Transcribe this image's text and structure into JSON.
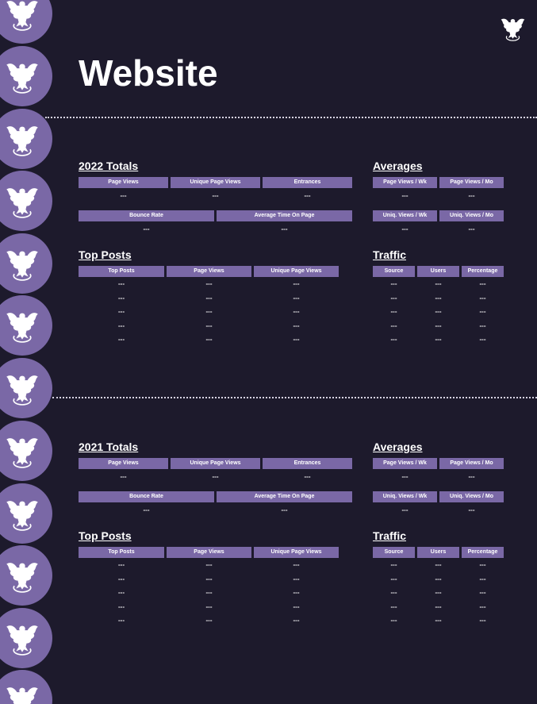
{
  "title": "Website",
  "sections": [
    {
      "totals": {
        "heading": "2022 Totals",
        "row1": {
          "headers": [
            "Page Views",
            "Unique Page Views",
            "Entrances"
          ],
          "values": [
            "---",
            "---",
            "---"
          ]
        },
        "row2": {
          "headers": [
            "Bounce Rate",
            "Average Time On Page"
          ],
          "values": [
            "---",
            "---"
          ]
        }
      },
      "averages": {
        "heading": "Averages",
        "row1": {
          "headers": [
            "Page Views / Wk",
            "Page Views / Mo"
          ],
          "values": [
            "---",
            "---"
          ]
        },
        "row2": {
          "headers": [
            "Uniq. Views / Wk",
            "Uniq. Views / Mo"
          ],
          "values": [
            "---",
            "---"
          ]
        }
      },
      "top_posts": {
        "heading": "Top Posts",
        "headers": [
          "Top Posts",
          "Page Views",
          "Unique Page Views"
        ],
        "rows": [
          [
            "---",
            "---",
            "---"
          ],
          [
            "---",
            "---",
            "---"
          ],
          [
            "---",
            "---",
            "---"
          ],
          [
            "---",
            "---",
            "---"
          ],
          [
            "---",
            "---",
            "---"
          ]
        ]
      },
      "traffic": {
        "heading": "Traffic",
        "headers": [
          "Source",
          "Users",
          "Percentage"
        ],
        "rows": [
          [
            "---",
            "---",
            "---"
          ],
          [
            "---",
            "---",
            "---"
          ],
          [
            "---",
            "---",
            "---"
          ],
          [
            "---",
            "---",
            "---"
          ],
          [
            "---",
            "---",
            "---"
          ]
        ]
      }
    },
    {
      "totals": {
        "heading": "2021 Totals",
        "row1": {
          "headers": [
            "Page Views",
            "Unique Page Views",
            "Entrances"
          ],
          "values": [
            "---",
            "---",
            "---"
          ]
        },
        "row2": {
          "headers": [
            "Bounce Rate",
            "Average Time On Page"
          ],
          "values": [
            "---",
            "---"
          ]
        }
      },
      "averages": {
        "heading": "Averages",
        "row1": {
          "headers": [
            "Page Views / Wk",
            "Page Views / Mo"
          ],
          "values": [
            "---",
            "---"
          ]
        },
        "row2": {
          "headers": [
            "Uniq. Views / Wk",
            "Uniq. Views / Mo"
          ],
          "values": [
            "---",
            "---"
          ]
        }
      },
      "top_posts": {
        "heading": "Top Posts",
        "headers": [
          "Top Posts",
          "Page Views",
          "Unique Page Views"
        ],
        "rows": [
          [
            "---",
            "---",
            "---"
          ],
          [
            "---",
            "---",
            "---"
          ],
          [
            "---",
            "---",
            "---"
          ],
          [
            "---",
            "---",
            "---"
          ],
          [
            "---",
            "---",
            "---"
          ]
        ]
      },
      "traffic": {
        "heading": "Traffic",
        "headers": [
          "Source",
          "Users",
          "Percentage"
        ],
        "rows": [
          [
            "---",
            "---",
            "---"
          ],
          [
            "---",
            "---",
            "---"
          ],
          [
            "---",
            "---",
            "---"
          ],
          [
            "---",
            "---",
            "---"
          ],
          [
            "---",
            "---",
            "---"
          ]
        ]
      }
    }
  ]
}
